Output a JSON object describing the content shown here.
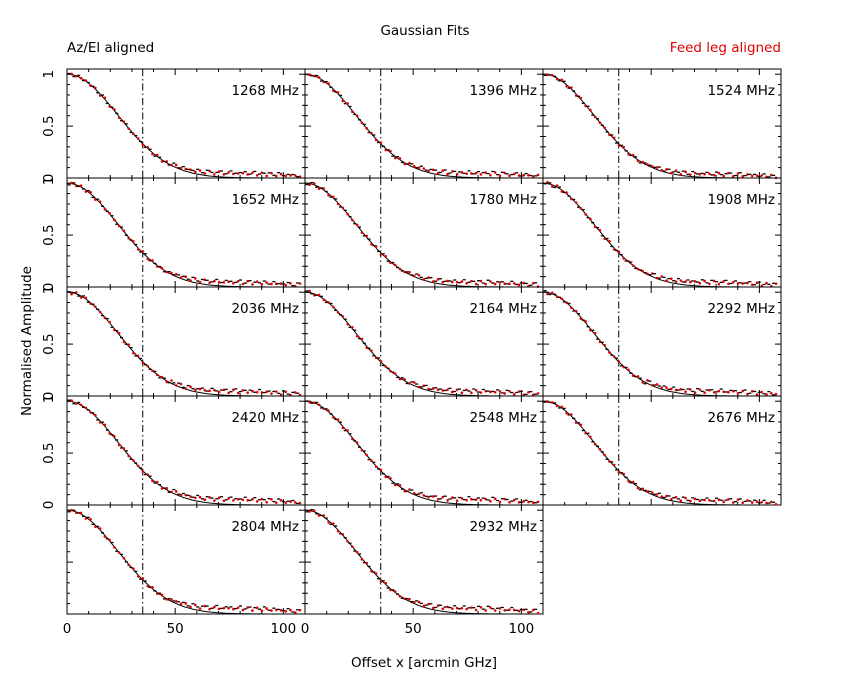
{
  "chart_data": {
    "type": "scatter",
    "title": "Gaussian Fits",
    "legend_left": "Az/El aligned",
    "legend_right": "Feed leg aligned",
    "xlabel": "Offset x [arcmin GHz]",
    "ylabel": "Normalised Amplitude",
    "xlim": [
      0,
      110
    ],
    "ylim": [
      0,
      1.05
    ],
    "x_ticks": [
      "0",
      "50",
      "100"
    ],
    "y_ticks": [
      "0",
      "0.5",
      "1"
    ],
    "reference_line_x": 35,
    "grid": false,
    "colors": {
      "az_el": "#000000",
      "feed_leg": "#e00000",
      "fit": "#000000"
    },
    "series": [
      {
        "name": "Az/El aligned",
        "color": "#000000"
      },
      {
        "name": "Feed leg aligned",
        "color": "#e00000"
      }
    ],
    "panels": [
      {
        "label": "1268 MHz",
        "sidelobe": 0.05
      },
      {
        "label": "1396 MHz",
        "sidelobe": 0.05
      },
      {
        "label": "1524 MHz",
        "sidelobe": 0.04
      },
      {
        "label": "1652 MHz",
        "sidelobe": 0.05
      },
      {
        "label": "1780 MHz",
        "sidelobe": 0.05
      },
      {
        "label": "1908 MHz",
        "sidelobe": 0.05
      },
      {
        "label": "2036 MHz",
        "sidelobe": 0.05
      },
      {
        "label": "2164 MHz",
        "sidelobe": 0.05
      },
      {
        "label": "2292 MHz",
        "sidelobe": 0.05
      },
      {
        "label": "2420 MHz",
        "sidelobe": 0.06
      },
      {
        "label": "2548 MHz",
        "sidelobe": 0.06
      },
      {
        "label": "2676 MHz",
        "sidelobe": 0.05
      },
      {
        "label": "2804 MHz",
        "sidelobe": 0.06
      },
      {
        "label": "2932 MHz",
        "sidelobe": 0.06
      }
    ]
  }
}
